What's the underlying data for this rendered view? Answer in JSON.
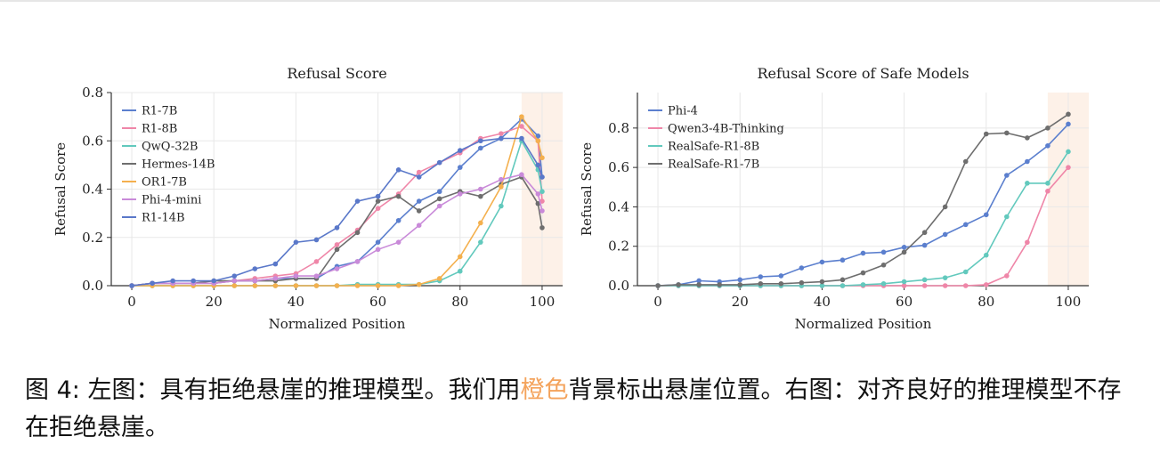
{
  "chart_data": [
    {
      "type": "line",
      "title": "Refusal Score",
      "xlabel": "Normalized Position",
      "ylabel": "Refusal Score",
      "xlim": [
        -5,
        105
      ],
      "ylim": [
        0,
        0.8
      ],
      "xticks": [
        "0",
        "20",
        "40",
        "60",
        "80",
        "100"
      ],
      "xtick_values": [
        0,
        20,
        40,
        60,
        80,
        100
      ],
      "yticks": [
        "0.0",
        "0.2",
        "0.4",
        "0.6",
        "0.8"
      ],
      "ytick_values": [
        0,
        0.2,
        0.4,
        0.6,
        0.8
      ],
      "highlight_range": [
        95,
        105
      ],
      "grid": true,
      "legend_position": "upper-left",
      "x": [
        0,
        5,
        10,
        15,
        20,
        25,
        30,
        35,
        40,
        45,
        50,
        55,
        60,
        65,
        70,
        75,
        80,
        85,
        90,
        95,
        99,
        100
      ],
      "series": [
        {
          "name": "R1-7B",
          "color": "#5b7fce",
          "values": [
            0,
            0.01,
            0.01,
            0.01,
            0.01,
            0.02,
            0.02,
            0.03,
            0.03,
            0.03,
            0.08,
            0.1,
            0.18,
            0.27,
            0.35,
            0.39,
            0.49,
            0.57,
            0.61,
            0.69,
            0.62,
            0.45
          ]
        },
        {
          "name": "R1-8B",
          "color": "#ef86a8",
          "values": [
            0,
            0.01,
            0.01,
            0.01,
            0.01,
            0.02,
            0.03,
            0.04,
            0.05,
            0.1,
            0.17,
            0.23,
            0.32,
            0.38,
            0.47,
            0.51,
            0.55,
            0.61,
            0.63,
            0.66,
            0.6,
            0.35
          ]
        },
        {
          "name": "QwQ-32B",
          "color": "#62c9bd",
          "values": [
            0,
            0,
            0,
            0,
            0,
            0,
            0,
            0,
            0,
            0,
            0,
            0.005,
            0.005,
            0.005,
            0.005,
            0.02,
            0.06,
            0.18,
            0.33,
            0.6,
            0.48,
            0.39
          ]
        },
        {
          "name": "Hermes-14B",
          "color": "#6e6e6e",
          "values": [
            0,
            0.01,
            0.01,
            0.01,
            0.02,
            0.02,
            0.02,
            0.02,
            0.03,
            0.03,
            0.15,
            0.22,
            0.35,
            0.37,
            0.31,
            0.36,
            0.39,
            0.37,
            0.42,
            0.45,
            0.34,
            0.24
          ]
        },
        {
          "name": "OR1-7B",
          "color": "#f4b04e",
          "values": [
            0,
            0,
            0,
            0,
            0,
            0,
            0,
            0,
            0,
            0,
            0,
            0,
            0,
            0,
            0.005,
            0.03,
            0.12,
            0.26,
            0.41,
            0.7,
            0.6,
            0.53
          ]
        },
        {
          "name": "Phi-4-mini",
          "color": "#c98ad9",
          "values": [
            0,
            0.01,
            0.01,
            0.01,
            0.01,
            0.02,
            0.02,
            0.03,
            0.04,
            0.04,
            0.07,
            0.1,
            0.15,
            0.18,
            0.25,
            0.33,
            0.38,
            0.4,
            0.44,
            0.46,
            0.38,
            0.31
          ]
        },
        {
          "name": "R1-14B",
          "color": "#5a78c9",
          "values": [
            0,
            0.01,
            0.02,
            0.02,
            0.02,
            0.04,
            0.07,
            0.09,
            0.18,
            0.19,
            0.24,
            0.35,
            0.37,
            0.48,
            0.45,
            0.51,
            0.56,
            0.6,
            0.61,
            0.61,
            0.5,
            0.45
          ]
        }
      ]
    },
    {
      "type": "line",
      "title": "Refusal Score of Safe Models",
      "xlabel": "Normalized Position",
      "ylabel": "Refusal Score",
      "xlim": [
        -5,
        105
      ],
      "ylim": [
        0,
        0.98
      ],
      "xticks": [
        "0",
        "20",
        "40",
        "60",
        "80",
        "100"
      ],
      "xtick_values": [
        0,
        20,
        40,
        60,
        80,
        100
      ],
      "yticks": [
        "0.0",
        "0.2",
        "0.4",
        "0.6",
        "0.8"
      ],
      "ytick_values": [
        0,
        0.2,
        0.4,
        0.6,
        0.8
      ],
      "highlight_range": [
        95,
        105
      ],
      "grid": true,
      "legend_position": "upper-left",
      "x": [
        0,
        5,
        10,
        15,
        20,
        25,
        30,
        35,
        40,
        45,
        50,
        55,
        60,
        65,
        70,
        75,
        80,
        85,
        90,
        95,
        100
      ],
      "series": [
        {
          "name": "Phi-4",
          "color": "#5b7fce",
          "values": [
            0,
            0.005,
            0.025,
            0.02,
            0.03,
            0.045,
            0.05,
            0.09,
            0.12,
            0.13,
            0.165,
            0.17,
            0.195,
            0.205,
            0.26,
            0.31,
            0.36,
            0.56,
            0.63,
            0.71,
            0.82
          ]
        },
        {
          "name": "Qwen3-4B-Thinking",
          "color": "#ef86a8",
          "values": [
            0,
            0,
            0,
            0,
            0,
            0,
            0,
            0,
            0,
            0,
            0,
            0,
            0,
            0,
            0,
            0,
            0.005,
            0.05,
            0.22,
            0.48,
            0.6
          ]
        },
        {
          "name": "RealSafe-R1-8B",
          "color": "#62c9bd",
          "values": [
            0,
            0,
            0,
            0,
            0,
            0,
            0,
            0,
            0,
            0,
            0.005,
            0.01,
            0.02,
            0.03,
            0.04,
            0.07,
            0.155,
            0.35,
            0.52,
            0.52,
            0.68
          ]
        },
        {
          "name": "RealSafe-R1-7B",
          "color": "#6e6e6e",
          "values": [
            0,
            0.005,
            0.005,
            0.005,
            0.005,
            0.01,
            0.01,
            0.015,
            0.02,
            0.03,
            0.065,
            0.105,
            0.17,
            0.27,
            0.4,
            0.63,
            0.77,
            0.775,
            0.75,
            0.8,
            0.87
          ]
        }
      ]
    }
  ],
  "caption": {
    "before": "图 4: 左图：具有拒绝悬崖的推理模型。我们用",
    "highlight": "橙色",
    "after": "背景标出悬崖位置。右图：对齐良好的推理模型不存在拒绝悬崖。",
    "highlight_color": "#f4a35c"
  }
}
